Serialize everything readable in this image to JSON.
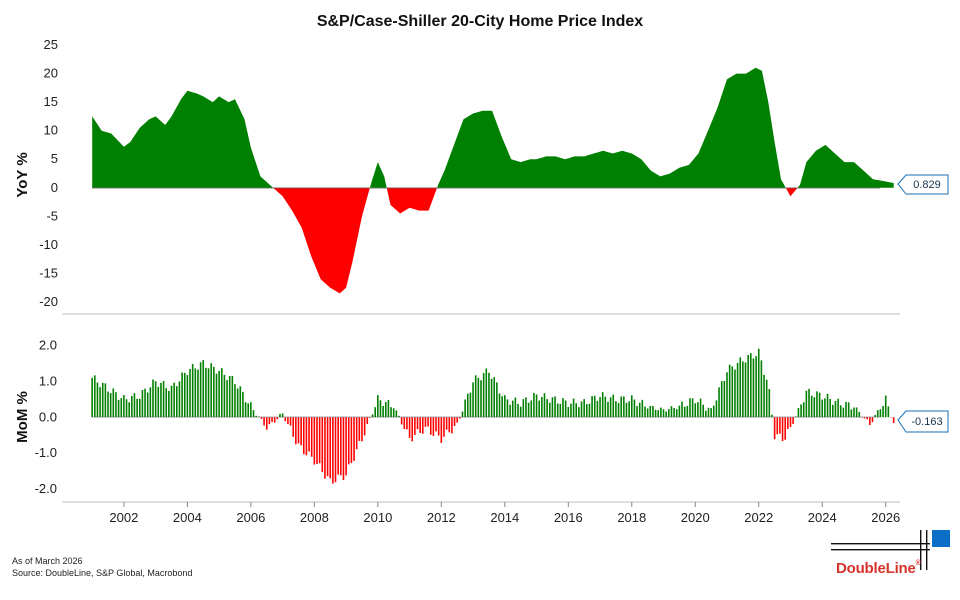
{
  "chart_data": [
    {
      "type": "area",
      "title": "S&P/Case-Shiller 20-City Home Price Index",
      "ylabel": "YoY %",
      "ylim": [
        -20,
        25
      ],
      "yticks": [
        25,
        20,
        15,
        10,
        5,
        0,
        -5,
        -10,
        -15,
        -20
      ],
      "positive_color": "#008000",
      "negative_color": "#ff0000",
      "latest_value_label": "0.829",
      "x": [
        2001.0,
        2001.3,
        2001.6,
        2002.0,
        2002.2,
        2002.5,
        2002.8,
        2003.0,
        2003.3,
        2003.5,
        2003.8,
        2004.0,
        2004.3,
        2004.5,
        2004.8,
        2005.0,
        2005.3,
        2005.5,
        2005.8,
        2006.0,
        2006.3,
        2006.6,
        2007.0,
        2007.3,
        2007.6,
        2007.9,
        2008.2,
        2008.5,
        2008.8,
        2009.0,
        2009.2,
        2009.5,
        2009.8,
        2010.0,
        2010.2,
        2010.4,
        2010.7,
        2011.0,
        2011.3,
        2011.6,
        2011.9,
        2012.1,
        2012.4,
        2012.7,
        2013.0,
        2013.3,
        2013.6,
        2013.9,
        2014.2,
        2014.5,
        2014.8,
        2015.0,
        2015.3,
        2015.6,
        2015.9,
        2016.2,
        2016.5,
        2016.8,
        2017.1,
        2017.4,
        2017.7,
        2018.0,
        2018.3,
        2018.6,
        2018.9,
        2019.2,
        2019.5,
        2019.8,
        2020.1,
        2020.4,
        2020.7,
        2021.0,
        2021.3,
        2021.6,
        2021.9,
        2022.1,
        2022.3,
        2022.5,
        2022.7,
        2023.0,
        2023.3,
        2023.5,
        2023.8,
        2024.1,
        2024.4,
        2024.7,
        2025.0,
        2025.3,
        2025.6,
        2025.9,
        2026.1,
        2026.25
      ],
      "values": [
        12.5,
        10.0,
        9.5,
        7.2,
        8.0,
        10.5,
        12.0,
        12.5,
        11.0,
        12.5,
        15.5,
        17.0,
        16.5,
        16.0,
        15.0,
        16.0,
        15.0,
        15.5,
        12.0,
        7.0,
        2.0,
        0.5,
        -1.5,
        -4.0,
        -7.0,
        -12.0,
        -16.0,
        -17.5,
        -18.5,
        -17.5,
        -13.0,
        -5.0,
        1.0,
        4.5,
        2.0,
        -3.0,
        -4.5,
        -3.5,
        -4.0,
        -4.0,
        0.5,
        3.0,
        7.5,
        12.0,
        13.0,
        13.5,
        13.5,
        9.0,
        5.0,
        4.5,
        5.0,
        5.0,
        5.5,
        5.5,
        5.0,
        5.5,
        5.5,
        6.0,
        6.5,
        6.0,
        6.5,
        6.0,
        5.0,
        3.0,
        2.0,
        2.5,
        3.5,
        4.0,
        6.0,
        10.0,
        14.0,
        19.0,
        20.0,
        20.0,
        21.0,
        20.5,
        15.0,
        8.0,
        1.5,
        -1.5,
        0.5,
        4.5,
        6.5,
        7.5,
        6.0,
        4.5,
        4.5,
        3.0,
        1.5,
        1.2,
        1.0,
        0.829
      ]
    },
    {
      "type": "bar",
      "ylabel": "MoM %",
      "ylim": [
        -2.0,
        2.0
      ],
      "yticks": [
        "2.0",
        "1.0",
        "0.0",
        "-1.0",
        "-2.0"
      ],
      "positive_color": "#008000",
      "negative_color": "#ff0000",
      "latest_value_label": "-0.163",
      "xlim": [
        2000.05,
        2026.45
      ],
      "xticks": [
        "2002",
        "2004",
        "2006",
        "2008",
        "2010",
        "2012",
        "2014",
        "2016",
        "2018",
        "2020",
        "2022",
        "2024",
        "2026"
      ],
      "x": [
        2001.0,
        2001.5,
        2002.0,
        2002.5,
        2003.0,
        2003.5,
        2004.0,
        2004.5,
        2005.0,
        2005.5,
        2006.0,
        2006.5,
        2007.0,
        2007.5,
        2008.0,
        2008.5,
        2009.0,
        2009.5,
        2010.0,
        2010.5,
        2011.0,
        2011.5,
        2012.0,
        2012.5,
        2013.0,
        2013.5,
        2014.0,
        2014.5,
        2015.0,
        2015.5,
        2016.0,
        2016.5,
        2017.0,
        2017.5,
        2018.0,
        2018.5,
        2019.0,
        2019.5,
        2020.0,
        2020.5,
        2021.0,
        2021.5,
        2022.0,
        2022.3,
        2022.5,
        2022.8,
        2023.0,
        2023.5,
        2024.0,
        2024.5,
        2025.0,
        2025.5,
        2026.0,
        2026.25
      ],
      "values": [
        1.1,
        0.8,
        0.5,
        0.6,
        1.0,
        0.8,
        1.3,
        1.5,
        1.3,
        1.0,
        0.3,
        -0.3,
        0.1,
        -0.8,
        -1.2,
        -1.8,
        -1.6,
        -0.6,
        0.5,
        0.3,
        -0.6,
        -0.3,
        -0.6,
        -0.2,
        1.0,
        1.3,
        0.5,
        0.4,
        0.6,
        0.5,
        0.4,
        0.4,
        0.6,
        0.5,
        0.5,
        0.3,
        0.2,
        0.3,
        0.5,
        0.2,
        1.3,
        1.6,
        1.8,
        0.9,
        -0.5,
        -0.6,
        -0.3,
        0.7,
        0.6,
        0.4,
        0.3,
        -0.2,
        0.5,
        -0.163
      ]
    }
  ],
  "footnotes": {
    "as_of": "As of March 2026",
    "source": "Source: DoubleLine, S&P Global, Macrobond"
  },
  "logo": {
    "text": "DoubleLine",
    "registered_mark": "®",
    "accent_color": "#0b6fc7",
    "text_color": "#d6332b"
  }
}
